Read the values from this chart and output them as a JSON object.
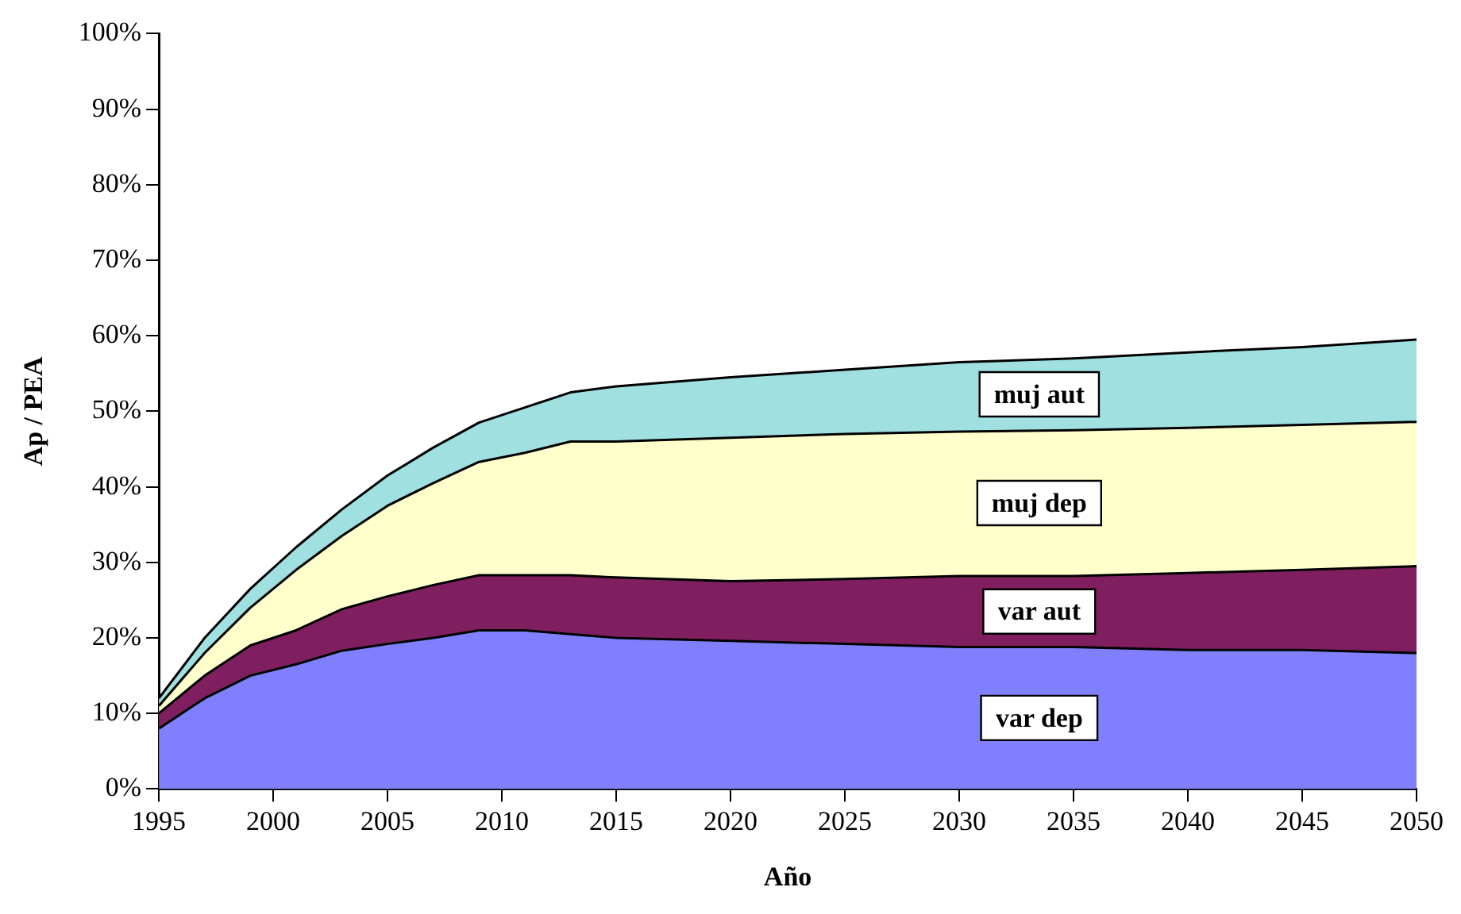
{
  "chart_data": {
    "type": "area",
    "stacked": true,
    "xlabel": "Año",
    "ylabel": "Ap / PEA",
    "x": [
      1995,
      1997,
      1999,
      2001,
      2003,
      2005,
      2007,
      2009,
      2011,
      2013,
      2015,
      2020,
      2025,
      2030,
      2035,
      2040,
      2045,
      2050
    ],
    "series": [
      {
        "name": "var dep",
        "color": "#8080ff",
        "values": [
          8,
          12,
          15,
          16.5,
          18.3,
          19.2,
          20,
          21,
          21,
          20.5,
          20,
          19.6,
          19.2,
          18.8,
          18.8,
          18.4,
          18.4,
          18
        ]
      },
      {
        "name": "var aut",
        "color": "#7f1f5f",
        "values": [
          2,
          3,
          4,
          4.5,
          5.5,
          6.3,
          7,
          7.3,
          7.3,
          7.8,
          8,
          7.9,
          8.6,
          9.4,
          9.4,
          10.2,
          10.6,
          11.5
        ]
      },
      {
        "name": "muj dep",
        "color": "#ffffcc",
        "values": [
          1,
          3,
          5,
          8,
          9.7,
          12,
          13.5,
          15,
          16.2,
          17.7,
          18,
          19,
          19.2,
          19.1,
          19.3,
          19.2,
          19.2,
          19.1
        ]
      },
      {
        "name": "muj aut",
        "color": "#a0e0e0",
        "values": [
          1,
          2,
          2.5,
          3,
          3.5,
          4,
          4.7,
          5.2,
          6,
          6.5,
          7.3,
          8,
          8.5,
          9.2,
          9.5,
          10,
          10.3,
          10.9
        ]
      }
    ],
    "xlim": [
      1995,
      2050
    ],
    "xticks": [
      1995,
      2000,
      2005,
      2010,
      2015,
      2020,
      2025,
      2030,
      2035,
      2040,
      2045,
      2050
    ],
    "ylim": [
      0,
      100
    ],
    "yticks": [
      {
        "value": 0,
        "label": "0%"
      },
      {
        "value": 10,
        "label": "10%"
      },
      {
        "value": 20,
        "label": "20%"
      },
      {
        "value": 30,
        "label": "30%"
      },
      {
        "value": 40,
        "label": "40%"
      },
      {
        "value": 50,
        "label": "50%"
      },
      {
        "value": 60,
        "label": "60%"
      },
      {
        "value": 70,
        "label": "70%"
      },
      {
        "value": 80,
        "label": "80%"
      },
      {
        "value": 90,
        "label": "90%"
      },
      {
        "value": 100,
        "label": "100%"
      }
    ],
    "grid": false,
    "legend": false,
    "marker": "none",
    "line_style": "solid"
  }
}
